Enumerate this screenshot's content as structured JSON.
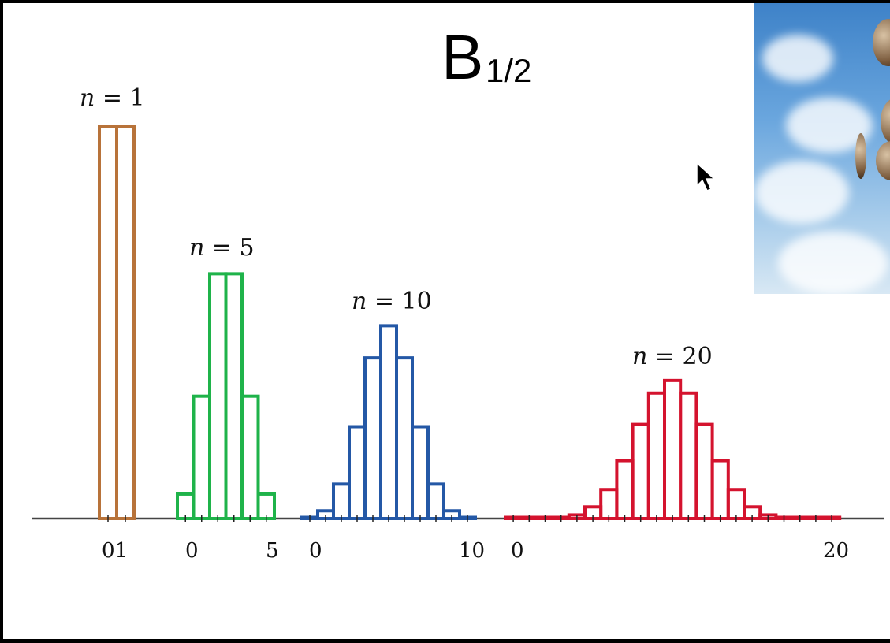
{
  "title": {
    "main": "B",
    "subscript": "1/2"
  },
  "colors": {
    "n1": "#b8733a",
    "n5": "#1fb34a",
    "n10": "#2458a6",
    "n20": "#d4132e",
    "axis": "#444444"
  },
  "cursor_icon": "arrow-cursor-icon",
  "photo_icon": "flipping-coins-photo",
  "chart_data": {
    "type": "bar",
    "groups": [
      {
        "label_var": "n",
        "label_eq": "=",
        "n": "1",
        "x": [
          0,
          1
        ],
        "values": [
          0.5,
          0.5
        ],
        "tick_labels": [
          "01"
        ]
      },
      {
        "label_var": "n",
        "label_eq": "=",
        "n": "5",
        "x": [
          0,
          1,
          2,
          3,
          4,
          5
        ],
        "values": [
          0.03125,
          0.15625,
          0.3125,
          0.3125,
          0.15625,
          0.03125
        ],
        "tick_labels": [
          "0",
          "5"
        ]
      },
      {
        "label_var": "n",
        "label_eq": "=",
        "n": "10",
        "x": [
          0,
          1,
          2,
          3,
          4,
          5,
          6,
          7,
          8,
          9,
          10
        ],
        "values": [
          0.001,
          0.0098,
          0.0439,
          0.1172,
          0.2051,
          0.2461,
          0.2051,
          0.1172,
          0.0439,
          0.0098,
          0.001
        ],
        "tick_labels": [
          "0",
          "10"
        ]
      },
      {
        "label_var": "n",
        "label_eq": "=",
        "n": "20",
        "x": [
          0,
          1,
          2,
          3,
          4,
          5,
          6,
          7,
          8,
          9,
          10,
          11,
          12,
          13,
          14,
          15,
          16,
          17,
          18,
          19,
          20
        ],
        "values": [
          0,
          0,
          0.0002,
          0.0011,
          0.0046,
          0.0148,
          0.037,
          0.0739,
          0.1201,
          0.1602,
          0.1762,
          0.1602,
          0.1201,
          0.0739,
          0.037,
          0.0148,
          0.0046,
          0.0011,
          0.0002,
          0,
          0
        ],
        "tick_labels": [
          "0",
          "20"
        ]
      }
    ]
  }
}
